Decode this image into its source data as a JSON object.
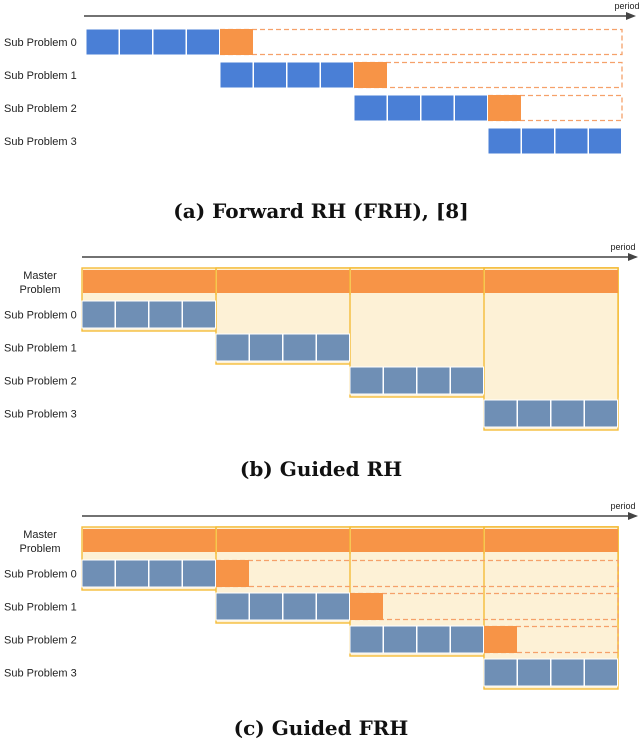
{
  "colors": {
    "blue": "#4a7fd6",
    "slate": "#6f8fb5",
    "orange": "#f79447",
    "dash": "#f5a16a",
    "guide_fill": "#fdf1d6",
    "guide_border": "#f4bd3a",
    "axis": "#444444"
  },
  "figures": [
    {
      "id": "a",
      "caption": "(a) Forward RH (FRH), [8]",
      "axis_label": "period",
      "master_label": null,
      "guided": false,
      "sub_labels": [
        "Sub Problem 0",
        "Sub Problem 1",
        "Sub Problem 2",
        "Sub Problem 3"
      ],
      "blocks_per_sub": 4,
      "lookahead": true
    },
    {
      "id": "b",
      "caption": "(b) Guided RH",
      "axis_label": "period",
      "master_label": "Master Problem",
      "guided": true,
      "sub_labels": [
        "Sub Problem 0",
        "Sub Problem 1",
        "Sub Problem 2",
        "Sub Problem 3"
      ],
      "blocks_per_sub": 4,
      "lookahead": false
    },
    {
      "id": "c",
      "caption": "(c) Guided FRH",
      "axis_label": "period",
      "master_label": "Master Problem",
      "guided": true,
      "sub_labels": [
        "Sub Problem 0",
        "Sub Problem 1",
        "Sub Problem 2",
        "Sub Problem 3"
      ],
      "blocks_per_sub": 4,
      "lookahead": true
    }
  ]
}
